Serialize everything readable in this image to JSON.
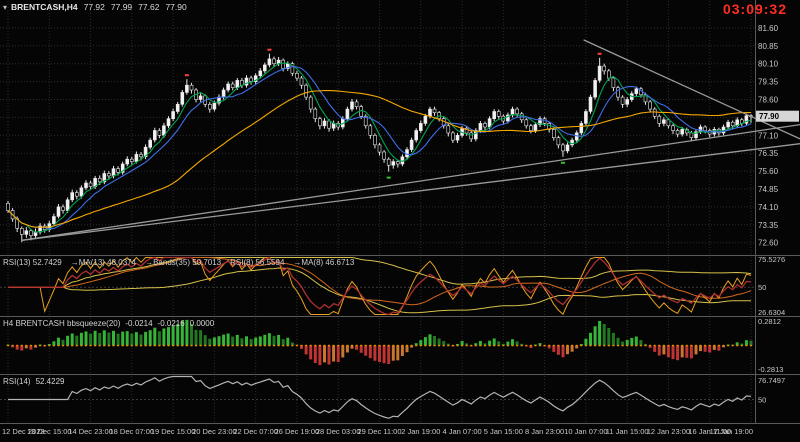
{
  "header": {
    "dropdown_icon": "▾",
    "symbol_period": "BRENTCASH,H4",
    "ohlc": {
      "open": "77.92",
      "high": "77.99",
      "low": "77.62",
      "close": "77.90"
    }
  },
  "timer": {
    "text": "03:09:32",
    "color": "#ff2d23"
  },
  "colors": {
    "background": "#050505",
    "grid": "#2c2c2c",
    "separator": "#5a5a5a",
    "scale_text": "#c9c9c9",
    "candle_up": "#f2f2f2",
    "candle_down": "#000000",
    "candle_border": "#e8e8e8",
    "ma_fast": "#00A550",
    "ma_mid": "#3E6DE8",
    "ma_slow": "#F5A800",
    "trendline": "#9a9a9a",
    "rsi_main": "#B03030",
    "rsi_ma": "#D2691E",
    "rsi_bands": "#D6C24A",
    "rsi_fast": "#E8A020",
    "bb_pos_rising": "#36B536",
    "bb_pos_falling": "#217821",
    "bb_neg_falling": "#C23333",
    "bb_neg_rising": "#C7772E",
    "bb_zero_dots": "#F08C00",
    "rsi14_line": "#b4b4b4",
    "price_tag_bg": "#d6d6d6",
    "price_tag_text": "#000000"
  },
  "price_scale": {
    "labels": [
      "81.60",
      "80.85",
      "80.10",
      "79.35",
      "78.60",
      "77.10",
      "76.35",
      "75.60",
      "74.85",
      "74.10",
      "73.35",
      "72.60"
    ],
    "current_price": "77.90"
  },
  "panels": {
    "rsi": {
      "title_parts": [
        "RSI(13) 52.7429",
        "→MA(13) 48.0374",
        "→Bands(35) 50.7013",
        "RSI(8) 56.5594",
        "→MA(8) 46.6713"
      ],
      "scale_top": "75.5276",
      "scale_mid": "50",
      "scale_bottom": "26.6304",
      "scale_top_value": 75.5276,
      "scale_bottom_value": 26.6304,
      "level_mid_value": 50
    },
    "bb": {
      "title": "H4 BRENTCASH bbsqueeze(20)",
      "values": [
        "-0.0214",
        "-0.0216",
        "0.0000"
      ],
      "scale_top": "0.2812",
      "scale_bottom": "-0.2813"
    },
    "rsi14": {
      "title": "RSI(14)",
      "value": "52.4229",
      "scale_top": "76.7497",
      "scale_mid": "50",
      "scale_top_value": 76.7497,
      "level_mid_value": 50
    }
  },
  "time_axis": {
    "labels": [
      "12 Dec 2023",
      "13 Dec 15:00",
      "14 Dec 23:00",
      "18 Dec 07:00",
      "19 Dec 15:00",
      "20 Dec 23:00",
      "22 Dec 07:00",
      "26 Dec 19:00",
      "28 Dec 03:00",
      "29 Dec 11:00",
      "2 Jan 19:00",
      "4 Jan 07:00",
      "5 Jan 15:00",
      "8 Jan 23:00",
      "10 Jan 07:00",
      "11 Jan 15:00",
      "12 Jan 23:00",
      "16 Jan 11:00",
      "17 Jan 19:00"
    ]
  },
  "chart_data": {
    "type": "candlestick",
    "symbol": "BRENTCASH",
    "timeframe": "H4",
    "ylim": [
      72.085,
      82.77
    ],
    "grid_step_bars": 9,
    "price_grid_step": 0.75,
    "price_grid_min": 72.6,
    "price_grid_max": 81.6,
    "current_price_value": 77.9,
    "candles": [
      [
        74.25,
        74.35,
        73.85,
        73.95
      ],
      [
        73.95,
        74.05,
        73.48,
        73.6
      ],
      [
        73.6,
        73.7,
        73.05,
        73.2
      ],
      [
        73.2,
        73.28,
        72.62,
        72.95
      ],
      [
        72.95,
        73.25,
        72.8,
        73.1
      ],
      [
        73.1,
        73.18,
        72.7,
        72.9
      ],
      [
        72.9,
        73.2,
        72.78,
        73.05
      ],
      [
        73.05,
        73.42,
        72.95,
        73.3
      ],
      [
        73.3,
        73.4,
        73.02,
        73.15
      ],
      [
        73.15,
        73.52,
        73.05,
        73.4
      ],
      [
        73.4,
        73.82,
        73.3,
        73.7
      ],
      [
        73.7,
        74.22,
        73.62,
        74.1
      ],
      [
        74.1,
        74.2,
        73.82,
        73.95
      ],
      [
        73.95,
        74.5,
        73.85,
        74.4
      ],
      [
        74.4,
        74.82,
        74.3,
        74.7
      ],
      [
        74.7,
        74.8,
        74.42,
        74.55
      ],
      [
        74.55,
        75.0,
        74.45,
        74.9
      ],
      [
        74.9,
        75.22,
        74.8,
        75.1
      ],
      [
        75.1,
        75.2,
        74.82,
        74.95
      ],
      [
        74.95,
        75.4,
        74.85,
        75.3
      ],
      [
        75.3,
        75.42,
        75.02,
        75.15
      ],
      [
        75.15,
        75.62,
        75.05,
        75.5
      ],
      [
        75.5,
        75.6,
        75.28,
        75.4
      ],
      [
        75.4,
        75.82,
        75.3,
        75.7
      ],
      [
        75.7,
        75.8,
        75.42,
        75.55
      ],
      [
        75.55,
        76.0,
        75.45,
        75.9
      ],
      [
        75.9,
        76.22,
        75.8,
        76.1
      ],
      [
        76.1,
        76.2,
        75.88,
        76.0
      ],
      [
        76.0,
        76.42,
        75.92,
        76.3
      ],
      [
        76.3,
        76.4,
        76.05,
        76.2
      ],
      [
        76.2,
        76.72,
        76.1,
        76.6
      ],
      [
        76.6,
        77.0,
        76.5,
        76.9
      ],
      [
        76.9,
        77.42,
        76.8,
        77.3
      ],
      [
        77.3,
        77.4,
        76.98,
        77.1
      ],
      [
        77.1,
        77.62,
        77.0,
        77.5
      ],
      [
        77.5,
        77.9,
        77.4,
        77.8
      ],
      [
        77.8,
        78.22,
        77.7,
        78.1
      ],
      [
        78.1,
        78.5,
        78.0,
        78.4
      ],
      [
        78.4,
        79.0,
        78.3,
        78.9
      ],
      [
        78.9,
        79.45,
        78.8,
        79.2
      ],
      [
        79.2,
        79.3,
        78.85,
        79.0
      ],
      [
        79.0,
        79.08,
        78.48,
        78.6
      ],
      [
        78.6,
        78.88,
        78.5,
        78.75
      ],
      [
        78.75,
        78.82,
        78.28,
        78.4
      ],
      [
        78.4,
        78.5,
        78.05,
        78.2
      ],
      [
        78.2,
        78.55,
        78.1,
        78.45
      ],
      [
        78.45,
        78.82,
        78.35,
        78.7
      ],
      [
        78.7,
        79.1,
        78.6,
        79.0
      ],
      [
        79.0,
        79.35,
        78.9,
        79.25
      ],
      [
        79.25,
        79.35,
        78.98,
        79.1
      ],
      [
        79.1,
        79.5,
        79.0,
        79.4
      ],
      [
        79.4,
        79.5,
        79.08,
        79.2
      ],
      [
        79.2,
        79.62,
        79.1,
        79.5
      ],
      [
        79.5,
        79.6,
        79.22,
        79.35
      ],
      [
        79.35,
        79.7,
        79.25,
        79.6
      ],
      [
        79.6,
        79.92,
        79.5,
        79.8
      ],
      [
        79.8,
        80.15,
        79.7,
        80.05
      ],
      [
        80.05,
        80.52,
        79.95,
        80.3
      ],
      [
        80.3,
        80.4,
        79.98,
        80.1
      ],
      [
        80.1,
        80.38,
        80.0,
        80.25
      ],
      [
        80.25,
        80.32,
        79.78,
        79.9
      ],
      [
        79.9,
        80.2,
        79.8,
        80.1
      ],
      [
        80.1,
        80.18,
        79.58,
        79.7
      ],
      [
        79.7,
        79.8,
        79.38,
        79.5
      ],
      [
        79.5,
        79.58,
        79.05,
        79.2
      ],
      [
        79.2,
        79.28,
        78.58,
        78.7
      ],
      [
        78.7,
        78.78,
        78.05,
        78.2
      ],
      [
        78.2,
        78.28,
        77.65,
        77.8
      ],
      [
        77.8,
        77.88,
        77.35,
        77.5
      ],
      [
        77.5,
        77.82,
        77.38,
        77.7
      ],
      [
        77.7,
        77.78,
        77.25,
        77.4
      ],
      [
        77.4,
        77.72,
        77.28,
        77.6
      ],
      [
        77.6,
        77.7,
        77.32,
        77.45
      ],
      [
        77.45,
        77.9,
        77.35,
        77.8
      ],
      [
        77.8,
        78.3,
        77.7,
        78.2
      ],
      [
        78.2,
        78.62,
        78.1,
        78.5
      ],
      [
        78.5,
        78.6,
        78.18,
        78.3
      ],
      [
        78.3,
        78.38,
        77.78,
        77.9
      ],
      [
        77.9,
        77.98,
        77.38,
        77.5
      ],
      [
        77.5,
        77.58,
        76.95,
        77.1
      ],
      [
        77.1,
        77.18,
        76.55,
        76.7
      ],
      [
        76.7,
        76.78,
        76.25,
        76.4
      ],
      [
        76.4,
        76.48,
        75.95,
        76.1
      ],
      [
        76.1,
        76.18,
        75.58,
        75.85
      ],
      [
        75.85,
        76.1,
        75.7,
        76.0
      ],
      [
        76.0,
        76.08,
        75.75,
        75.9
      ],
      [
        75.9,
        76.3,
        75.8,
        76.2
      ],
      [
        76.2,
        76.6,
        76.1,
        76.5
      ],
      [
        76.5,
        77.0,
        76.4,
        76.9
      ],
      [
        76.9,
        77.4,
        76.8,
        77.3
      ],
      [
        77.3,
        77.72,
        77.2,
        77.6
      ],
      [
        77.6,
        78.0,
        77.5,
        77.9
      ],
      [
        77.9,
        78.3,
        77.8,
        78.2
      ],
      [
        78.2,
        78.3,
        77.92,
        78.05
      ],
      [
        78.05,
        78.12,
        77.68,
        77.8
      ],
      [
        77.8,
        77.88,
        77.38,
        77.5
      ],
      [
        77.5,
        77.58,
        77.05,
        77.2
      ],
      [
        77.2,
        77.28,
        76.78,
        76.9
      ],
      [
        76.9,
        77.2,
        76.78,
        77.1
      ],
      [
        77.1,
        77.5,
        77.0,
        77.4
      ],
      [
        77.4,
        77.48,
        77.08,
        77.2
      ],
      [
        77.2,
        77.28,
        76.82,
        76.95
      ],
      [
        76.95,
        77.4,
        76.85,
        77.3
      ],
      [
        77.3,
        77.7,
        77.2,
        77.6
      ],
      [
        77.6,
        77.68,
        77.32,
        77.45
      ],
      [
        77.45,
        77.9,
        77.35,
        77.8
      ],
      [
        77.8,
        78.2,
        77.7,
        78.1
      ],
      [
        78.1,
        78.18,
        77.78,
        77.9
      ],
      [
        77.9,
        77.98,
        77.58,
        77.7
      ],
      [
        77.7,
        78.05,
        77.6,
        77.95
      ],
      [
        77.95,
        78.3,
        77.85,
        78.2
      ],
      [
        78.2,
        78.28,
        77.88,
        78.0
      ],
      [
        78.0,
        78.08,
        77.62,
        77.75
      ],
      [
        77.75,
        77.82,
        77.38,
        77.5
      ],
      [
        77.5,
        77.58,
        77.18,
        77.3
      ],
      [
        77.3,
        77.65,
        77.2,
        77.55
      ],
      [
        77.55,
        77.9,
        77.45,
        77.8
      ],
      [
        77.8,
        77.88,
        77.48,
        77.6
      ],
      [
        77.6,
        77.68,
        77.22,
        77.35
      ],
      [
        77.35,
        77.42,
        76.88,
        77.0
      ],
      [
        77.0,
        77.08,
        76.55,
        76.7
      ],
      [
        76.7,
        76.78,
        76.2,
        76.45
      ],
      [
        76.45,
        76.8,
        76.35,
        76.7
      ],
      [
        76.7,
        77.0,
        76.6,
        76.9
      ],
      [
        76.9,
        77.3,
        76.8,
        77.2
      ],
      [
        77.2,
        77.7,
        77.1,
        77.6
      ],
      [
        77.6,
        78.2,
        77.5,
        78.1
      ],
      [
        78.1,
        78.8,
        78.0,
        78.7
      ],
      [
        78.7,
        79.5,
        78.6,
        79.4
      ],
      [
        79.4,
        80.35,
        79.3,
        80.0
      ],
      [
        80.0,
        80.1,
        79.65,
        79.8
      ],
      [
        79.8,
        79.88,
        79.38,
        79.5
      ],
      [
        79.5,
        79.58,
        78.95,
        79.1
      ],
      [
        79.1,
        79.18,
        78.55,
        78.7
      ],
      [
        78.7,
        78.78,
        78.25,
        78.4
      ],
      [
        78.4,
        78.7,
        78.28,
        78.6
      ],
      [
        78.6,
        78.95,
        78.5,
        78.85
      ],
      [
        78.85,
        79.15,
        78.75,
        79.05
      ],
      [
        79.05,
        79.12,
        78.68,
        78.8
      ],
      [
        78.8,
        78.88,
        78.38,
        78.5
      ],
      [
        78.5,
        78.58,
        78.05,
        78.2
      ],
      [
        78.2,
        78.28,
        77.78,
        77.9
      ],
      [
        77.9,
        77.98,
        77.45,
        77.6
      ],
      [
        77.6,
        77.85,
        77.48,
        77.75
      ],
      [
        77.75,
        77.82,
        77.38,
        77.5
      ],
      [
        77.5,
        77.58,
        77.15,
        77.3
      ],
      [
        77.3,
        77.38,
        77.02,
        77.15
      ],
      [
        77.15,
        77.45,
        77.05,
        77.35
      ],
      [
        77.35,
        77.42,
        77.08,
        77.2
      ],
      [
        77.2,
        77.28,
        76.85,
        77.0
      ],
      [
        77.0,
        77.35,
        76.9,
        77.25
      ],
      [
        77.25,
        77.55,
        77.15,
        77.45
      ],
      [
        77.45,
        77.52,
        77.18,
        77.3
      ],
      [
        77.3,
        77.38,
        77.02,
        77.15
      ],
      [
        77.15,
        77.45,
        77.05,
        77.35
      ],
      [
        77.35,
        77.42,
        77.08,
        77.2
      ],
      [
        77.2,
        77.55,
        77.1,
        77.45
      ],
      [
        77.45,
        77.75,
        77.35,
        77.65
      ],
      [
        77.65,
        77.72,
        77.38,
        77.5
      ],
      [
        77.5,
        77.85,
        77.4,
        77.75
      ],
      [
        77.75,
        77.82,
        77.48,
        77.6
      ],
      [
        77.6,
        78.0,
        77.52,
        77.92
      ],
      [
        77.92,
        77.99,
        77.62,
        77.9
      ]
    ],
    "ma_overlays": [
      {
        "period": 5,
        "color": "#00A550"
      },
      {
        "period": 9,
        "color": "#3E6DE8"
      },
      {
        "period": 36,
        "color": "#F5A800"
      }
    ],
    "trendlines": [
      {
        "from_bar": 125.5,
        "from_price": 81.1,
        "to_bar": 172.7,
        "to_price": 76.95
      },
      {
        "from_bar": 3,
        "from_price": 72.7,
        "to_bar": 172.7,
        "to_price": 76.75
      },
      {
        "from_bar": 3,
        "from_price": 72.7,
        "to_bar": 172.7,
        "to_price": 77.55
      }
    ],
    "fractal_markers": [
      {
        "bar": 39,
        "type": "high",
        "color": "#ff4040"
      },
      {
        "bar": 57,
        "type": "high",
        "color": "#ff4040"
      },
      {
        "bar": 129,
        "type": "high",
        "color": "#ff4040"
      },
      {
        "bar": 83,
        "type": "low",
        "color": "#30c030"
      },
      {
        "bar": 121,
        "type": "low",
        "color": "#30c030"
      }
    ]
  }
}
